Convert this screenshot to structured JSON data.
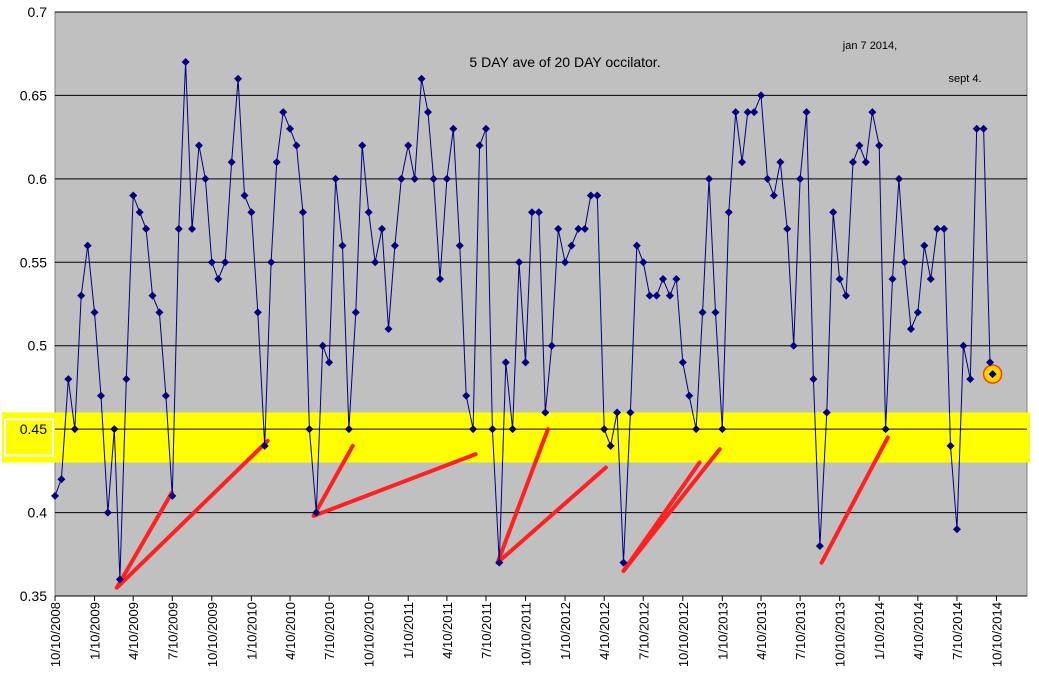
{
  "chart_data": {
    "type": "line",
    "title": "5 DAY ave of 20 DAY occilator.",
    "annotations": [
      "jan 7 2014,",
      "sept 4."
    ],
    "x": [
      "10/10/2008",
      "10/25/2008",
      "11/10/2008",
      "11/25/2008",
      "12/10/2008",
      "12/25/2008",
      "1/10/2009",
      "1/25/2009",
      "2/10/2009",
      "2/25/2009",
      "3/10/2009",
      "3/25/2009",
      "4/10/2009",
      "4/25/2009",
      "5/10/2009",
      "5/25/2009",
      "6/10/2009",
      "6/25/2009",
      "7/10/2009",
      "7/25/2009",
      "8/10/2009",
      "8/25/2009",
      "9/10/2009",
      "9/25/2009",
      "10/10/2009",
      "10/25/2009",
      "11/10/2009",
      "11/25/2009",
      "12/10/2009",
      "12/25/2009",
      "1/10/2010",
      "1/25/2010",
      "2/10/2010",
      "2/25/2010",
      "3/10/2010",
      "3/25/2010",
      "4/10/2010",
      "4/25/2010",
      "5/10/2010",
      "5/25/2010",
      "6/10/2010",
      "6/25/2010",
      "7/10/2010",
      "7/25/2010",
      "8/10/2010",
      "8/25/2010",
      "9/10/2010",
      "9/25/2010",
      "10/10/2010",
      "10/25/2010",
      "11/10/2010",
      "11/25/2010",
      "12/10/2010",
      "12/25/2010",
      "1/10/2011",
      "1/25/2011",
      "2/10/2011",
      "2/25/2011",
      "3/10/2011",
      "3/25/2011",
      "4/10/2011",
      "4/25/2011",
      "5/10/2011",
      "5/25/2011",
      "6/10/2011",
      "6/25/2011",
      "7/10/2011",
      "7/25/2011",
      "8/10/2011",
      "8/25/2011",
      "9/10/2011",
      "9/25/2011",
      "10/10/2011",
      "10/25/2011",
      "11/10/2011",
      "11/25/2011",
      "12/10/2011",
      "12/25/2011",
      "1/10/2012",
      "1/25/2012",
      "2/10/2012",
      "2/25/2012",
      "3/10/2012",
      "3/25/2012",
      "4/10/2012",
      "4/25/2012",
      "5/10/2012",
      "5/25/2012",
      "6/10/2012",
      "6/25/2012",
      "7/10/2012",
      "7/25/2012",
      "8/10/2012",
      "8/25/2012",
      "9/10/2012",
      "9/25/2012",
      "10/10/2012",
      "10/25/2012",
      "11/10/2012",
      "11/25/2012",
      "12/10/2012",
      "12/25/2012",
      "1/10/2013",
      "1/25/2013",
      "2/10/2013",
      "2/25/2013",
      "3/10/2013",
      "3/25/2013",
      "4/10/2013",
      "4/25/2013",
      "5/10/2013",
      "5/25/2013",
      "6/10/2013",
      "6/25/2013",
      "7/10/2013",
      "7/25/2013",
      "8/10/2013",
      "8/25/2013",
      "9/10/2013",
      "9/25/2013",
      "10/10/2013",
      "10/25/2013",
      "11/10/2013",
      "11/25/2013",
      "12/10/2013",
      "12/25/2013",
      "1/10/2014",
      "1/25/2014",
      "2/10/2014",
      "2/25/2014",
      "3/10/2014",
      "3/25/2014",
      "4/10/2014",
      "4/25/2014",
      "5/10/2014",
      "5/25/2014",
      "6/10/2014",
      "6/25/2014",
      "7/10/2014",
      "7/25/2014",
      "8/10/2014",
      "8/25/2014",
      "9/10/2014",
      "9/25/2014",
      "10/1/2014"
    ],
    "series": [
      {
        "color": "#000080",
        "values": [
          0.41,
          0.42,
          0.48,
          0.45,
          0.53,
          0.56,
          0.52,
          0.47,
          0.4,
          0.45,
          0.36,
          0.48,
          0.59,
          0.58,
          0.57,
          0.53,
          0.52,
          0.47,
          0.41,
          0.57,
          0.67,
          0.57,
          0.62,
          0.6,
          0.55,
          0.54,
          0.55,
          0.61,
          0.66,
          0.59,
          0.58,
          0.52,
          0.44,
          0.55,
          0.61,
          0.64,
          0.63,
          0.62,
          0.58,
          0.45,
          0.4,
          0.5,
          0.49,
          0.6,
          0.56,
          0.45,
          0.52,
          0.62,
          0.58,
          0.55,
          0.57,
          0.51,
          0.56,
          0.6,
          0.62,
          0.6,
          0.66,
          0.64,
          0.6,
          0.54,
          0.6,
          0.63,
          0.56,
          0.47,
          0.45,
          0.62,
          0.63,
          0.45,
          0.37,
          0.49,
          0.45,
          0.55,
          0.49,
          0.58,
          0.58,
          0.46,
          0.5,
          0.57,
          0.55,
          0.56,
          0.57,
          0.57,
          0.59,
          0.59,
          0.45,
          0.44,
          0.46,
          0.37,
          0.46,
          0.56,
          0.55,
          0.53,
          0.53,
          0.54,
          0.53,
          0.54,
          0.49,
          0.47,
          0.45,
          0.52,
          0.6,
          0.52,
          0.45,
          0.58,
          0.64,
          0.61,
          0.64,
          0.64,
          0.65,
          0.6,
          0.59,
          0.61,
          0.57,
          0.5,
          0.6,
          0.64,
          0.48,
          0.38,
          0.46,
          0.58,
          0.54,
          0.53,
          0.61,
          0.62,
          0.61,
          0.64,
          0.62,
          0.45,
          0.54,
          0.6,
          0.55,
          0.51,
          0.52,
          0.56,
          0.54,
          0.57,
          0.57,
          0.44,
          0.39,
          0.5,
          0.48,
          0.63,
          0.63,
          0.49,
          0.483
        ]
      }
    ],
    "xlim": [
      "10/10/2008",
      "12/20/2014"
    ],
    "xticks": [
      "10/10/2008",
      "1/10/2009",
      "4/10/2009",
      "7/10/2009",
      "10/10/2009",
      "1/10/2010",
      "4/10/2010",
      "7/10/2010",
      "10/10/2010",
      "1/10/2011",
      "4/10/2011",
      "7/10/2011",
      "10/10/2011",
      "1/10/2012",
      "4/10/2012",
      "7/10/2012",
      "10/10/2012",
      "1/10/2013",
      "4/10/2013",
      "7/10/2013",
      "10/10/2013",
      "1/10/2014",
      "4/10/2014",
      "7/10/2014",
      "10/10/2014"
    ],
    "ylim": [
      0.35,
      0.7
    ],
    "yticks": [
      0.35,
      0.4,
      0.45,
      0.5,
      0.55,
      0.6,
      0.65,
      0.7
    ],
    "grid": true,
    "band": [
      0.43,
      0.46
    ],
    "band_color": "#ffff00",
    "trend_color": "#ff2020",
    "trend_lines": [
      {
        "x": [
          "3/3/2009",
          "7/9/2009"
        ],
        "y": [
          0.355,
          0.412
        ]
      },
      {
        "x": [
          "3/3/2009",
          "2/17/2010"
        ],
        "y": [
          0.355,
          0.443
        ]
      },
      {
        "x": [
          "6/4/2010",
          "9/3/2010"
        ],
        "y": [
          0.398,
          0.44
        ]
      },
      {
        "x": [
          "6/4/2010",
          "6/16/2011"
        ],
        "y": [
          0.398,
          0.435
        ]
      },
      {
        "x": [
          "8/6/2011",
          "12/1/2011"
        ],
        "y": [
          0.37,
          0.45
        ]
      },
      {
        "x": [
          "8/6/2011",
          "4/14/2012"
        ],
        "y": [
          0.37,
          0.427
        ]
      },
      {
        "x": [
          "5/25/2012",
          "11/18/2012"
        ],
        "y": [
          0.365,
          0.43
        ]
      },
      {
        "x": [
          "5/25/2012",
          "1/4/2013"
        ],
        "y": [
          0.365,
          0.438
        ]
      },
      {
        "x": [
          "8/29/2013",
          "1/30/2014"
        ],
        "y": [
          0.37,
          0.445
        ]
      }
    ]
  }
}
